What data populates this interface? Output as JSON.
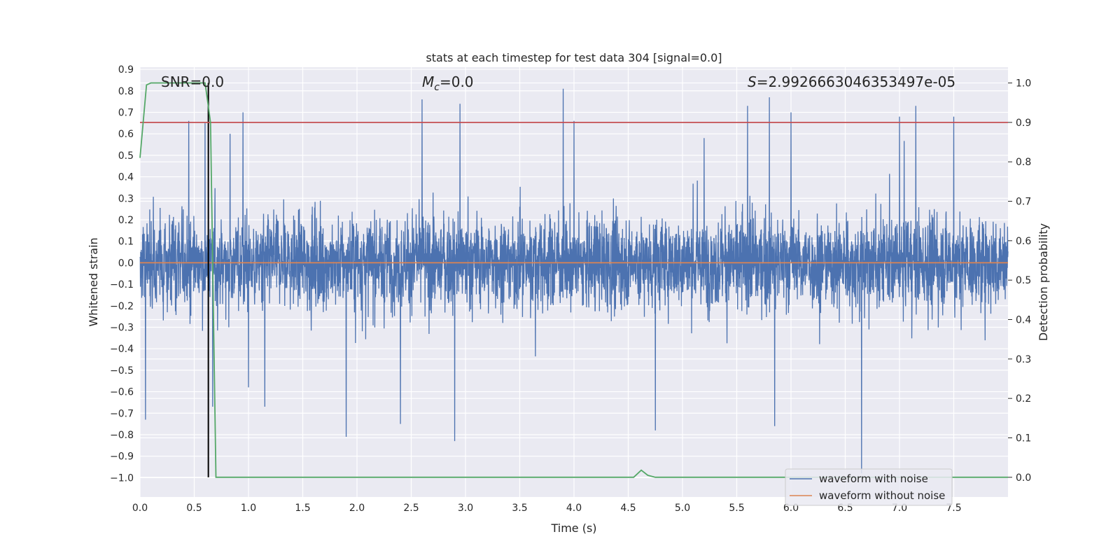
{
  "chart_data": {
    "type": "line",
    "title": "stats at each timestep for test data 304 [signal=0.0]",
    "xlabel": "Time (s)",
    "ylabel": "Whitened strain",
    "y2label": "Detection probability",
    "xlim": [
      0.0,
      8.0
    ],
    "ylim": [
      -1.09,
      0.91
    ],
    "y2lim": [
      -0.05,
      1.04
    ],
    "x_ticks": [
      0.0,
      0.5,
      1.0,
      1.5,
      2.0,
      2.5,
      3.0,
      3.5,
      4.0,
      4.5,
      5.0,
      5.5,
      6.0,
      6.5,
      7.0,
      7.5
    ],
    "x_tick_labels": [
      "0.0",
      "0.5",
      "1.0",
      "1.5",
      "2.0",
      "2.5",
      "3.0",
      "3.5",
      "4.0",
      "4.5",
      "5.0",
      "5.5",
      "6.0",
      "6.5",
      "7.0",
      "7.5"
    ],
    "y_ticks": [
      0.9,
      0.8,
      0.7,
      0.6,
      0.5,
      0.4,
      0.3,
      0.2,
      0.1,
      0.0,
      -0.1,
      -0.2,
      -0.3,
      -0.4,
      -0.5,
      -0.6,
      -0.7,
      -0.8,
      -0.9,
      -1.0
    ],
    "y_tick_labels": [
      "0.9",
      "0.8",
      "0.7",
      "0.6",
      "0.5",
      "0.4",
      "0.3",
      "0.2",
      "0.1",
      "0.0",
      "−0.1",
      "−0.2",
      "−0.3",
      "−0.4",
      "−0.5",
      "−0.6",
      "−0.7",
      "−0.8",
      "−0.9",
      "−1.0"
    ],
    "y2_ticks": [
      1.0,
      0.9,
      0.8,
      0.7,
      0.6,
      0.5,
      0.4,
      0.3,
      0.2,
      0.1,
      0.0
    ],
    "y2_tick_labels": [
      "1.0",
      "0.9",
      "0.8",
      "0.7",
      "0.6",
      "0.5",
      "0.4",
      "0.3",
      "0.2",
      "0.1",
      "0.0"
    ],
    "grid": true,
    "legend_position": "lower-right",
    "annotations": {
      "snr": "SNR=0.0",
      "mc_symbol": "M",
      "mc_subscript": "c",
      "mc_value": "=0.0",
      "s_symbol": "S",
      "s_value": "=2.9926663046353497e-05"
    },
    "series": [
      {
        "name": "waveform with noise",
        "color": "#4c72b0",
        "axis": "left",
        "sample_rate_hz": 512,
        "noise_envelope": 0.27,
        "peaks": [
          [
            0.05,
            -0.73
          ],
          [
            0.45,
            0.66
          ],
          [
            0.6,
            0.65
          ],
          [
            0.67,
            -0.67
          ],
          [
            0.83,
            0.6
          ],
          [
            0.95,
            0.7
          ],
          [
            1.0,
            -0.58
          ],
          [
            1.15,
            -0.67
          ],
          [
            1.9,
            -0.81
          ],
          [
            2.4,
            -0.75
          ],
          [
            2.6,
            0.76
          ],
          [
            2.9,
            -0.83
          ],
          [
            2.95,
            0.74
          ],
          [
            3.9,
            0.81
          ],
          [
            4.0,
            0.66
          ],
          [
            4.75,
            -0.78
          ],
          [
            5.2,
            0.58
          ],
          [
            5.6,
            0.73
          ],
          [
            5.8,
            0.77
          ],
          [
            5.85,
            -0.76
          ],
          [
            6.0,
            0.7
          ],
          [
            6.65,
            -0.98
          ],
          [
            7.0,
            0.68
          ],
          [
            7.15,
            0.73
          ],
          [
            7.5,
            0.68
          ]
        ]
      },
      {
        "name": "waveform without noise",
        "color": "#dd8452",
        "axis": "left",
        "x": [
          0.0,
          8.0
        ],
        "y": [
          0.0,
          0.0
        ]
      },
      {
        "color": "#55a868",
        "axis": "right",
        "x": [
          0.0,
          0.06,
          0.1,
          0.55,
          0.6,
          0.65,
          0.7,
          4.55,
          4.62,
          4.68,
          4.75,
          8.0
        ],
        "y": [
          0.81,
          0.995,
          1.0,
          1.0,
          1.0,
          0.9,
          0.0,
          0.0,
          0.018,
          0.005,
          0.0,
          0.0
        ]
      },
      {
        "color": "#c44e52",
        "axis": "right",
        "x": [
          0.0,
          8.0
        ],
        "y": [
          0.9,
          0.9
        ]
      }
    ],
    "vertical_marker": {
      "x": 0.63,
      "color": "#000000",
      "y2_range": [
        0.0,
        1.0
      ]
    }
  }
}
